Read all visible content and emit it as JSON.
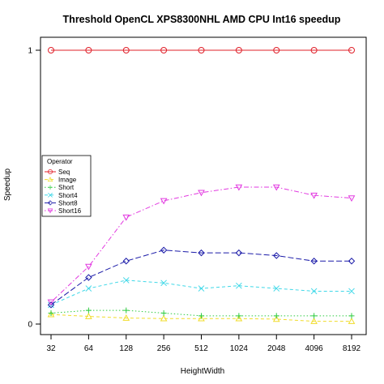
{
  "chart_data": {
    "type": "line",
    "title": "Threshold OpenCL XPS8300NHL AMD CPU Int16 speedup",
    "xlabel": "HeightWidth",
    "ylabel": "Speedup",
    "categories": [
      "32",
      "64",
      "128",
      "256",
      "512",
      "1024",
      "2048",
      "4096",
      "8192"
    ],
    "ylim": [
      0,
      1
    ],
    "yticks": [
      "0",
      "1"
    ],
    "grid": false,
    "legend": {
      "title": "Operator",
      "placement": "left"
    },
    "series": [
      {
        "name": "Seq",
        "color": "#e0202a",
        "dash": "solid",
        "marker": "circle",
        "values": [
          1,
          1,
          1,
          1,
          1,
          1,
          1,
          1,
          1
        ]
      },
      {
        "name": "Image",
        "color": "#f0dc2a",
        "dash": "dashed",
        "marker": "triangle",
        "values": [
          0.035,
          0.028,
          0.022,
          0.02,
          0.02,
          0.02,
          0.018,
          0.01,
          0.01
        ]
      },
      {
        "name": "Short",
        "color": "#2ecc40",
        "dash": "dotted",
        "marker": "plus",
        "values": [
          0.04,
          0.05,
          0.05,
          0.04,
          0.03,
          0.03,
          0.03,
          0.03,
          0.03
        ]
      },
      {
        "name": "Short4",
        "color": "#3fd8e8",
        "dash": "dashed",
        "marker": "cross",
        "values": [
          0.07,
          0.13,
          0.16,
          0.15,
          0.13,
          0.14,
          0.13,
          0.12,
          0.12
        ]
      },
      {
        "name": "Short8",
        "color": "#1a1aa8",
        "dash": "longdash",
        "marker": "diamond",
        "values": [
          0.07,
          0.17,
          0.23,
          0.27,
          0.26,
          0.26,
          0.25,
          0.23,
          0.23
        ]
      },
      {
        "name": "Short16",
        "color": "#e23ae0",
        "dash": "dotdash",
        "marker": "downtriangle",
        "values": [
          0.08,
          0.21,
          0.39,
          0.45,
          0.48,
          0.5,
          0.5,
          0.47,
          0.46
        ]
      }
    ]
  }
}
